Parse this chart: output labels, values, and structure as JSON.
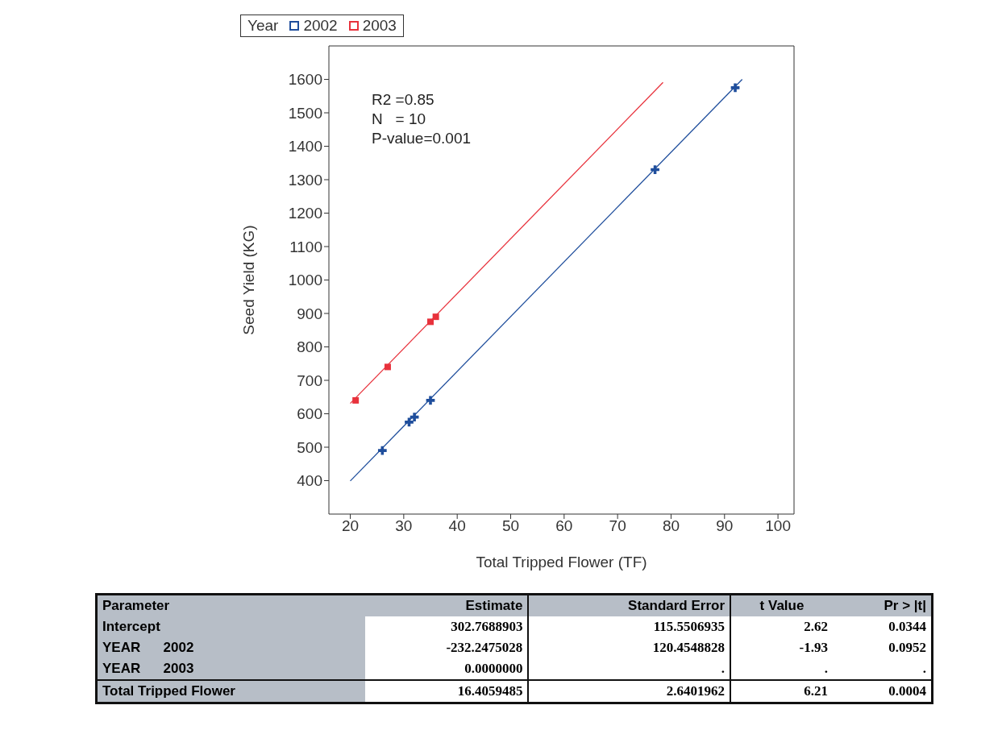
{
  "chart_data": {
    "type": "scatter",
    "xlabel": "Total Tripped Flower (TF)",
    "ylabel": "Seed Yield (KG)",
    "legend_title": "Year",
    "legend": "top",
    "grid": false,
    "xlim": [
      16,
      103
    ],
    "ylim": [
      300,
      1700
    ],
    "xticks": [
      20,
      30,
      40,
      50,
      60,
      70,
      80,
      90,
      100
    ],
    "yticks": [
      400,
      500,
      600,
      700,
      800,
      900,
      1000,
      1100,
      1200,
      1300,
      1400,
      1500,
      1600
    ],
    "series": [
      {
        "name": "2002",
        "color": "#1f4e9c",
        "marker": "cross",
        "x": [
          26,
          31,
          32,
          35,
          77,
          92
        ],
        "values": [
          490,
          575,
          590,
          640,
          1330,
          1575
        ]
      },
      {
        "name": "2003",
        "color": "#e8323c",
        "marker": "square",
        "x": [
          21,
          27,
          35,
          36
        ],
        "values": [
          640,
          740,
          875,
          890
        ]
      },
      {
        "type": "line",
        "color": "#1f4e9c",
        "x": [
          20,
          93.3
        ],
        "values": [
          399,
          1600
        ]
      },
      {
        "type": "line",
        "color": "#e8323c",
        "x": [
          20,
          78.5
        ],
        "values": [
          631,
          1591
        ]
      }
    ],
    "annotations": [
      "R2 =0.85",
      "N   = 10",
      "P-value=0.001",
      "Parameter",
      "Estimate",
      "Standard Error",
      "t Value",
      "Pr > |t|",
      "Intercept",
      "302.7688903",
      "115.5506935",
      "2.62",
      "0.0344",
      "YEAR      2002",
      "-232.2475028",
      "120.4548828",
      "-1.93",
      "0.0952",
      "YEAR      2003",
      "0.0000000",
      ".",
      ".",
      ".",
      "Total Tripped Flower",
      "16.4059485",
      "2.6401962",
      "6.21",
      "0.0004"
    ]
  }
}
